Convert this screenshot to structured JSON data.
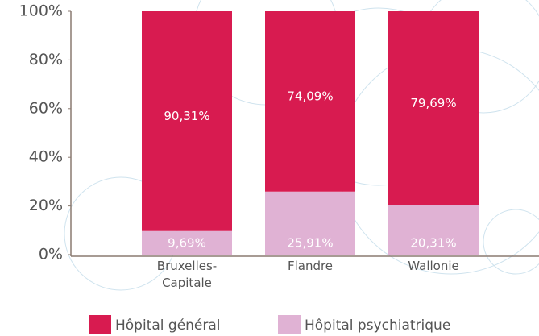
{
  "chart_data": {
    "type": "stacked-bar",
    "categories": [
      "Bruxelles-Capitale",
      "Flandre",
      "Wallonie"
    ],
    "series": [
      {
        "name": "Hôpital psychiatrique",
        "color": "#e0b2d4",
        "values": [
          9.69,
          25.91,
          20.31
        ],
        "value_labels": [
          "9,69%",
          "25,91%",
          "20,31%"
        ]
      },
      {
        "name": "Hôpital général",
        "color": "#d81b50",
        "values": [
          90.31,
          74.09,
          79.69
        ],
        "value_labels": [
          "90,31%",
          "74,09%",
          "79,69%"
        ]
      }
    ],
    "ylim": [
      0,
      100
    ],
    "yticks": [
      {
        "value": 0,
        "label": "0%"
      },
      {
        "value": 20,
        "label": "20%"
      },
      {
        "value": 40,
        "label": "40%"
      },
      {
        "value": 60,
        "label": "60%"
      },
      {
        "value": 80,
        "label": "80%"
      },
      {
        "value": 100,
        "label": "100%"
      }
    ],
    "legend": "bottom"
  }
}
